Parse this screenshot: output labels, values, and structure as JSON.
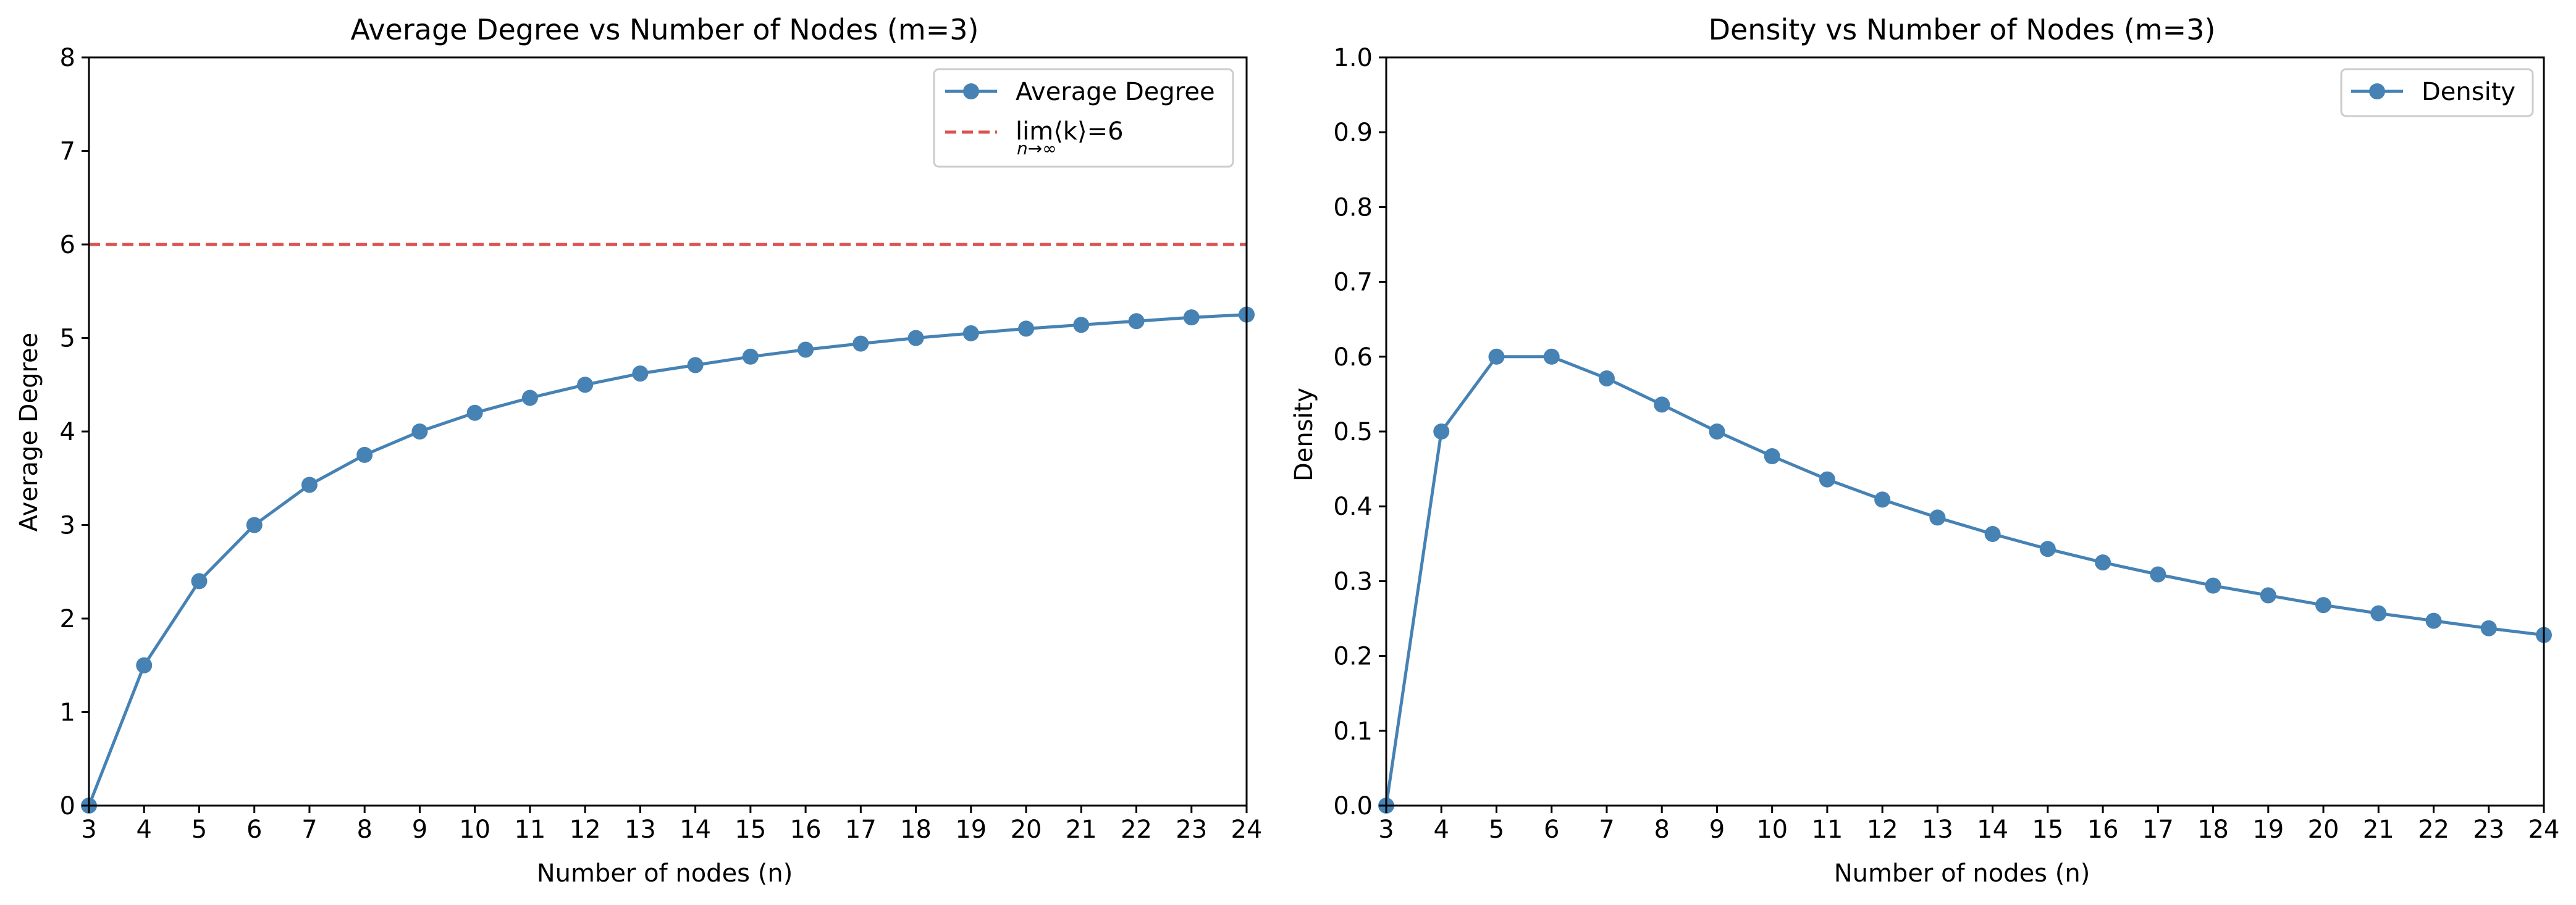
{
  "chart_data": [
    {
      "type": "line",
      "title": "Average Degree vs Number of Nodes (m=3)",
      "xlabel": "Number of nodes (n)",
      "ylabel": "Average Degree",
      "xlim": [
        3,
        24
      ],
      "ylim": [
        0,
        8
      ],
      "x_ticks": [
        3,
        4,
        5,
        6,
        7,
        8,
        9,
        10,
        11,
        12,
        13,
        14,
        15,
        16,
        17,
        18,
        19,
        20,
        21,
        22,
        23,
        24
      ],
      "y_ticks": [
        0,
        1,
        2,
        3,
        4,
        5,
        6,
        7,
        8
      ],
      "y_tick_labels": [
        "0",
        "1",
        "2",
        "3",
        "4",
        "5",
        "6",
        "7",
        "8"
      ],
      "grid": false,
      "legend_position": "top-right",
      "series": [
        {
          "name": "Average Degree",
          "color": "#4682b4",
          "marker": "circle",
          "x": [
            3,
            4,
            5,
            6,
            7,
            8,
            9,
            10,
            11,
            12,
            13,
            14,
            15,
            16,
            17,
            18,
            19,
            20,
            21,
            22,
            23,
            24
          ],
          "values": [
            0,
            1.5,
            2.4,
            3.0,
            3.43,
            3.75,
            4.0,
            4.2,
            4.36,
            4.5,
            4.62,
            4.71,
            4.8,
            4.875,
            4.94,
            5.0,
            5.05,
            5.1,
            5.14,
            5.18,
            5.22,
            5.25
          ]
        }
      ],
      "reference_lines": [
        {
          "label_main": "lim⟨k⟩=6",
          "label_sub": "n→∞",
          "y": 6,
          "color": "#d9534f",
          "style": "dashed"
        }
      ]
    },
    {
      "type": "line",
      "title": "Density vs Number of Nodes (m=3)",
      "xlabel": "Number of nodes (n)",
      "ylabel": "Density",
      "xlim": [
        3,
        24
      ],
      "ylim": [
        0,
        1
      ],
      "x_ticks": [
        3,
        4,
        5,
        6,
        7,
        8,
        9,
        10,
        11,
        12,
        13,
        14,
        15,
        16,
        17,
        18,
        19,
        20,
        21,
        22,
        23,
        24
      ],
      "y_ticks": [
        0,
        0.1,
        0.2,
        0.3,
        0.4,
        0.5,
        0.6,
        0.7,
        0.8,
        0.9,
        1.0
      ],
      "y_tick_labels": [
        "0.0",
        "0.1",
        "0.2",
        "0.3",
        "0.4",
        "0.5",
        "0.6",
        "0.7",
        "0.8",
        "0.9",
        "1.0"
      ],
      "grid": false,
      "legend_position": "top-right",
      "series": [
        {
          "name": "Density",
          "color": "#4682b4",
          "marker": "circle",
          "x": [
            3,
            4,
            5,
            6,
            7,
            8,
            9,
            10,
            11,
            12,
            13,
            14,
            15,
            16,
            17,
            18,
            19,
            20,
            21,
            22,
            23,
            24
          ],
          "values": [
            0,
            0.5,
            0.6,
            0.6,
            0.571,
            0.536,
            0.5,
            0.467,
            0.436,
            0.409,
            0.385,
            0.363,
            0.343,
            0.325,
            0.309,
            0.294,
            0.281,
            0.268,
            0.257,
            0.247,
            0.237,
            0.228
          ]
        }
      ],
      "reference_lines": []
    }
  ]
}
